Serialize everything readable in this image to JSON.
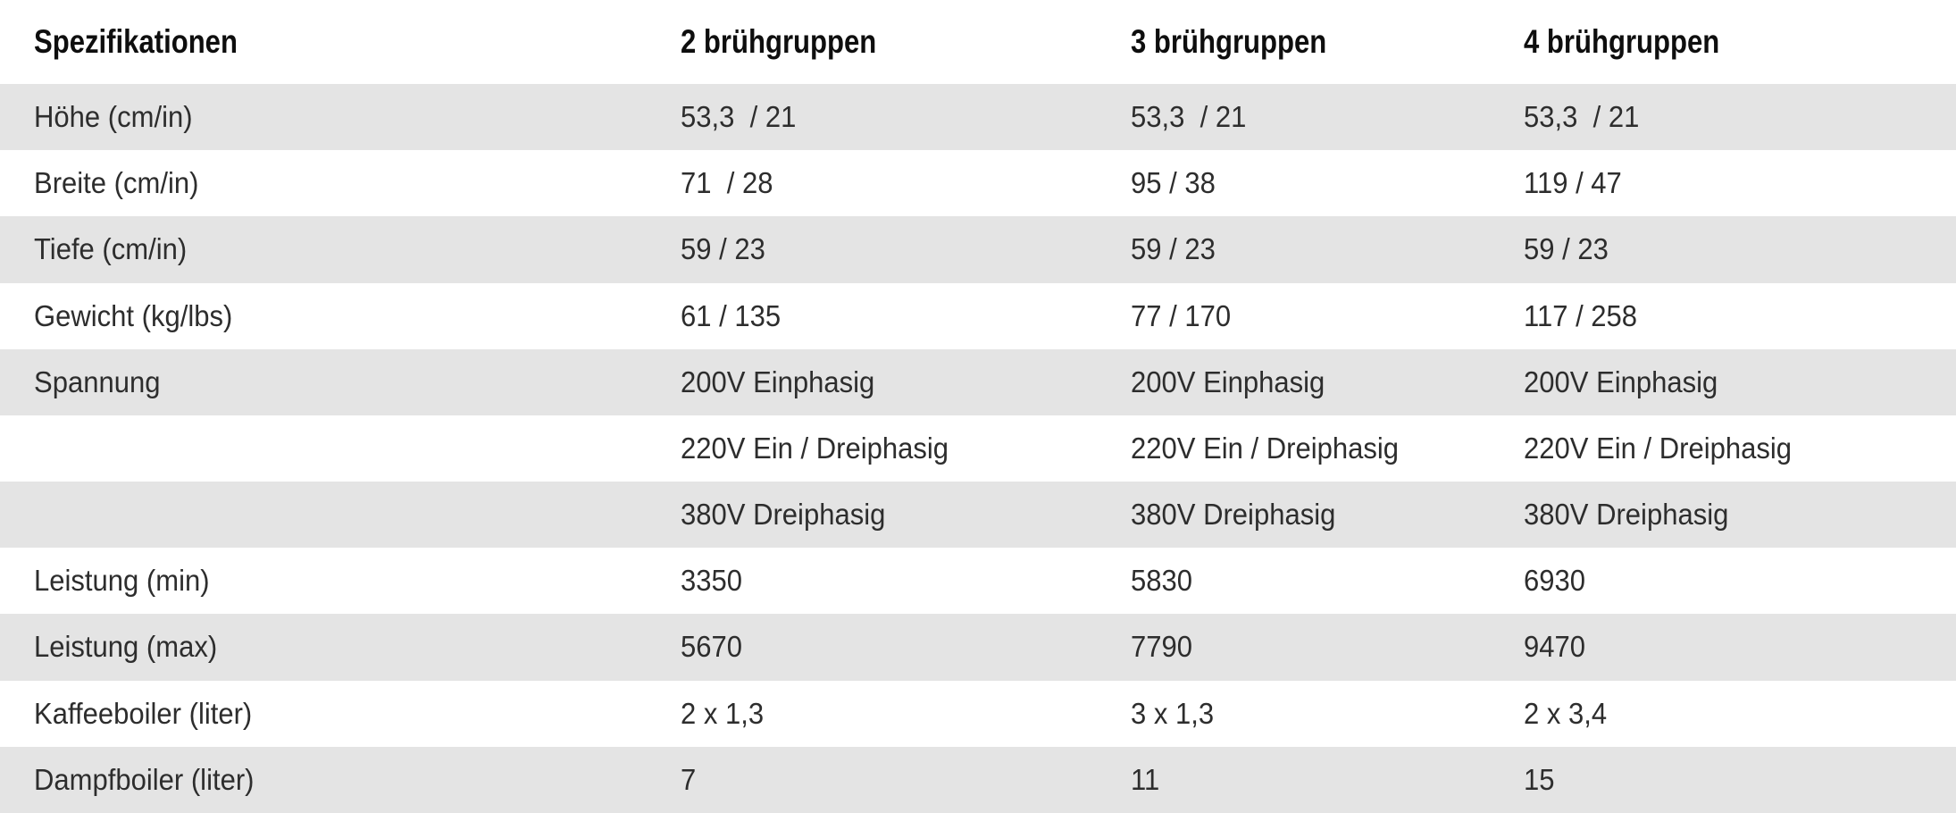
{
  "table": {
    "title": "Spezifikationen",
    "columns": [
      "Spezifikationen",
      "2 brühgruppen",
      "3 brühgruppen",
      "4 brühgruppen"
    ],
    "rows": [
      {
        "label": "Höhe (cm/in)",
        "values": [
          "53,3  / 21",
          "53,3  / 21",
          "53,3  / 21"
        ],
        "shaded": true
      },
      {
        "label": "Breite (cm/in)",
        "values": [
          "71  / 28",
          "95 / 38",
          "119 / 47"
        ],
        "shaded": false
      },
      {
        "label": "Tiefe (cm/in)",
        "values": [
          "59 / 23",
          "59 / 23",
          "59 / 23"
        ],
        "shaded": true
      },
      {
        "label": "Gewicht (kg/lbs)",
        "values": [
          "61 / 135",
          "77 / 170",
          "117 / 258"
        ],
        "shaded": false
      },
      {
        "label": "Spannung",
        "values": [
          "200V Einphasig",
          "200V Einphasig",
          "200V Einphasig"
        ],
        "shaded": true
      },
      {
        "label": "",
        "values": [
          "220V Ein / Dreiphasig",
          "220V Ein / Dreiphasig",
          "220V Ein / Dreiphasig"
        ],
        "shaded": false
      },
      {
        "label": "",
        "values": [
          "380V Dreiphasig",
          "380V Dreiphasig",
          "380V Dreiphasig"
        ],
        "shaded": true
      },
      {
        "label": "Leistung (min)",
        "values": [
          "3350",
          "5830",
          "6930"
        ],
        "shaded": false
      },
      {
        "label": "Leistung (max)",
        "values": [
          "5670",
          "7790",
          "9470"
        ],
        "shaded": true
      },
      {
        "label": "Kaffeeboiler (liter)",
        "values": [
          "2 x 1,3",
          "3 x 1,3",
          "2 x 3,4"
        ],
        "shaded": false
      },
      {
        "label": "Dampfboiler (liter)",
        "values": [
          "7",
          "11",
          "15"
        ],
        "shaded": true
      }
    ],
    "colors": {
      "background": "#ffffff",
      "row_shade": "#e4e4e4",
      "text": "#2d2d2d",
      "header_text": "#0e0e0e"
    }
  }
}
